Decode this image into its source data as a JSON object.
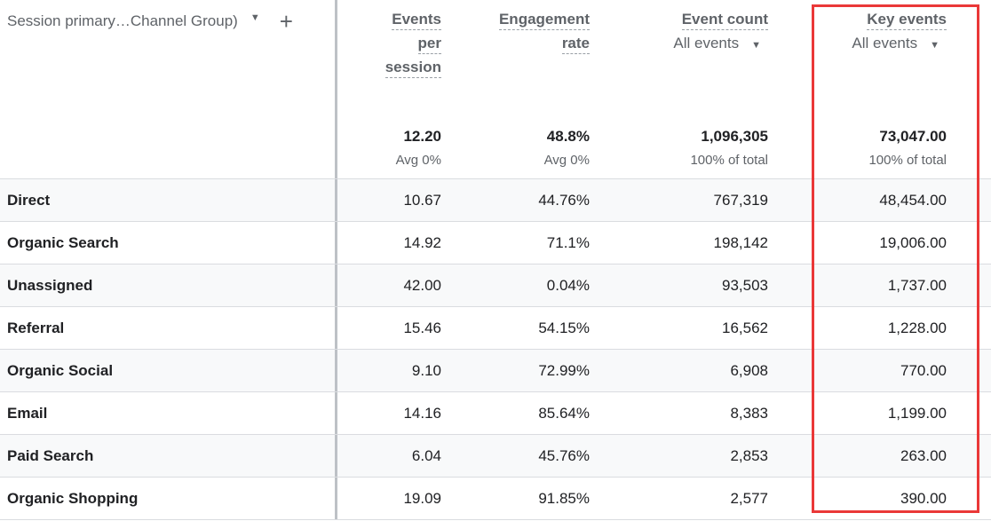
{
  "dimension": {
    "label": "Session primary…Channel Group)"
  },
  "columns": [
    {
      "label_lines": [
        "Events",
        "per",
        "session"
      ],
      "total": "12.20",
      "sub": "Avg 0%"
    },
    {
      "label_lines": [
        "Engagement",
        "rate"
      ],
      "total": "48.8%",
      "sub": "Avg 0%"
    },
    {
      "label_lines": [
        "Event count"
      ],
      "selector": "All events",
      "total": "1,096,305",
      "sub": "100% of total"
    },
    {
      "label_lines": [
        "Key events"
      ],
      "selector": "All events",
      "total": "73,047.00",
      "sub": "100% of total"
    }
  ],
  "rows": [
    {
      "name": "Direct",
      "values": [
        "10.67",
        "44.76%",
        "767,319",
        "48,454.00"
      ]
    },
    {
      "name": "Organic Search",
      "values": [
        "14.92",
        "71.1%",
        "198,142",
        "19,006.00"
      ]
    },
    {
      "name": "Unassigned",
      "values": [
        "42.00",
        "0.04%",
        "93,503",
        "1,737.00"
      ]
    },
    {
      "name": "Referral",
      "values": [
        "15.46",
        "54.15%",
        "16,562",
        "1,228.00"
      ]
    },
    {
      "name": "Organic Social",
      "values": [
        "9.10",
        "72.99%",
        "6,908",
        "770.00"
      ]
    },
    {
      "name": "Email",
      "values": [
        "14.16",
        "85.64%",
        "8,383",
        "1,199.00"
      ]
    },
    {
      "name": "Paid Search",
      "values": [
        "6.04",
        "45.76%",
        "2,853",
        "263.00"
      ]
    },
    {
      "name": "Organic Shopping",
      "values": [
        "19.09",
        "91.85%",
        "2,577",
        "390.00"
      ]
    }
  ],
  "highlight_color": "#ea3838"
}
